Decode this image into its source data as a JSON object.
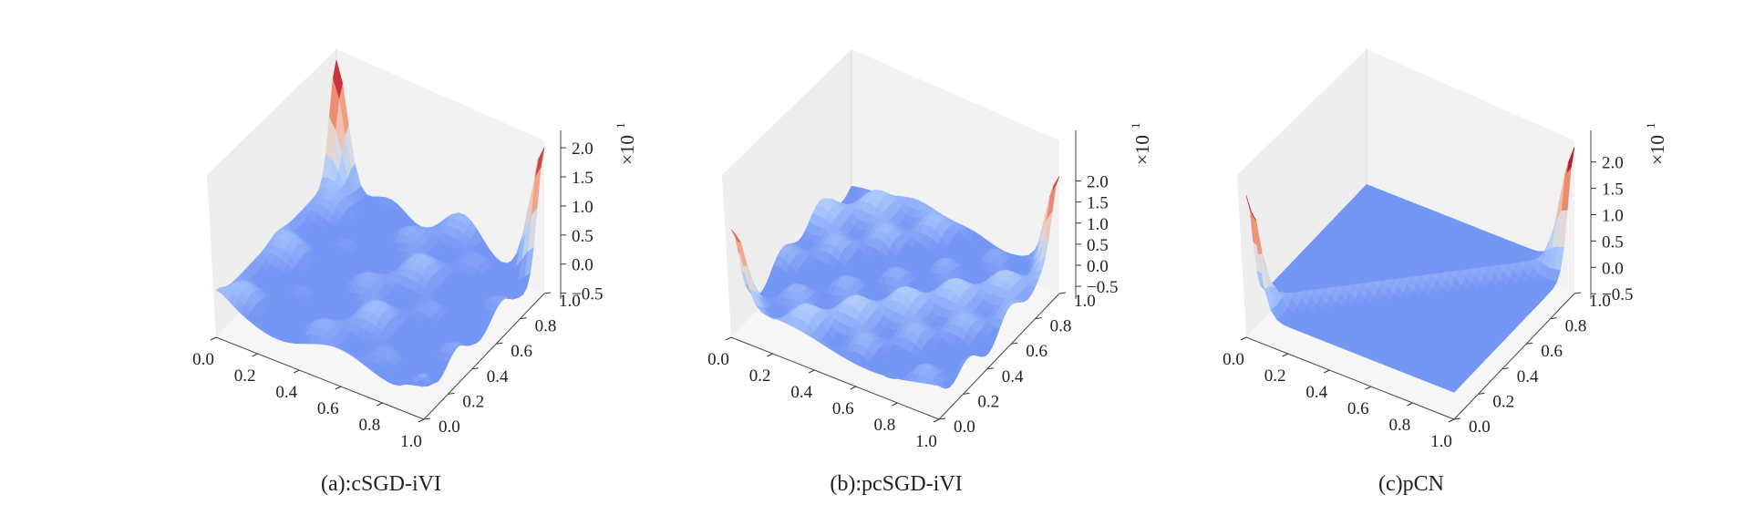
{
  "chart_data": [
    {
      "type": "surface",
      "caption": "(a):cSGD-iVI",
      "x_ticks": [
        "0.0",
        "0.2",
        "0.4",
        "0.6",
        "0.8",
        "1.0"
      ],
      "y_ticks": [
        "0.0",
        "0.2",
        "0.4",
        "0.6",
        "0.8",
        "1.0"
      ],
      "z_ticks": [
        "−0.5",
        "0.0",
        "0.5",
        "1.0",
        "1.5",
        "2.0"
      ],
      "z_tick_values": [
        -0.5,
        0.0,
        0.5,
        1.0,
        1.5,
        2.0
      ],
      "z_multiplier": "×10",
      "z_multiplier_exp": "1",
      "xlim": [
        0,
        1
      ],
      "ylim": [
        0,
        1
      ],
      "zlim": [
        -0.6,
        2.3
      ],
      "colormap": [
        "#3b4cc0",
        "#6f92f3",
        "#aac7fd",
        "#dddddd",
        "#f7b89c",
        "#e7745b",
        "#b40426"
      ],
      "peaks": [
        {
          "x": 0.0,
          "y": 0.0,
          "z": 0.2
        },
        {
          "x": 1.0,
          "y": 0.0,
          "z": 0.35
        },
        {
          "x": 0.0,
          "y": 1.0,
          "z": 2.3
        },
        {
          "x": 1.0,
          "y": 1.0,
          "z": 2.2
        },
        {
          "x": 0.0,
          "y": 0.5,
          "z": 0.1
        },
        {
          "x": 0.5,
          "y": 0.0,
          "z": 0.0
        }
      ],
      "z_range": [
        -0.5,
        2.3
      ]
    },
    {
      "type": "surface",
      "caption": "(b):pcSGD-iVI",
      "x_ticks": [
        "0.0",
        "0.2",
        "0.4",
        "0.6",
        "0.8",
        "1.0"
      ],
      "y_ticks": [
        "0.0",
        "0.2",
        "0.4",
        "0.6",
        "0.8",
        "1.0"
      ],
      "z_ticks": [
        "−0.5",
        "0.0",
        "0.5",
        "1.0",
        "1.5",
        "2.0"
      ],
      "z_tick_values": [
        -0.5,
        0.0,
        0.5,
        1.0,
        1.5,
        2.0
      ],
      "z_multiplier": "×10",
      "z_multiplier_exp": "1",
      "xlim": [
        0,
        1
      ],
      "ylim": [
        0,
        1
      ],
      "zlim": [
        -0.8,
        3.2
      ],
      "colormap": [
        "#3b4cc0",
        "#6f92f3",
        "#aac7fd",
        "#dddddd",
        "#f7b89c",
        "#e7745b",
        "#b40426"
      ],
      "peaks": [
        {
          "x": 0.0,
          "y": 0.0,
          "z": 2.2
        },
        {
          "x": 1.0,
          "y": 1.0,
          "z": 2.5
        },
        {
          "x": 0.0,
          "y": 1.0,
          "z": 0.0
        },
        {
          "x": 1.0,
          "y": 0.0,
          "z": 0.0
        }
      ],
      "z_range": [
        -0.7,
        2.5
      ]
    },
    {
      "type": "surface",
      "caption": "(c)pCN",
      "x_ticks": [
        "0.0",
        "0.2",
        "0.4",
        "0.6",
        "0.8",
        "1.0"
      ],
      "y_ticks": [
        "0.0",
        "0.2",
        "0.4",
        "0.6",
        "0.8",
        "1.0"
      ],
      "z_ticks": [
        "−0.5",
        "0.0",
        "0.5",
        "1.0",
        "1.5",
        "2.0"
      ],
      "z_tick_values": [
        -0.5,
        0.0,
        0.5,
        1.0,
        1.5,
        2.0
      ],
      "z_multiplier": "×10",
      "z_multiplier_exp": "1",
      "xlim": [
        0,
        1
      ],
      "ylim": [
        0,
        1
      ],
      "zlim": [
        -0.6,
        2.6
      ],
      "colormap": [
        "#3b4cc0",
        "#6f92f3",
        "#aac7fd",
        "#dddddd",
        "#f7b89c",
        "#e7745b",
        "#b40426"
      ],
      "peaks": [
        {
          "x": 0.0,
          "y": 0.0,
          "z": 2.3
        },
        {
          "x": 1.0,
          "y": 1.0,
          "z": 2.4
        }
      ],
      "z_range": [
        -0.5,
        2.4
      ]
    }
  ]
}
